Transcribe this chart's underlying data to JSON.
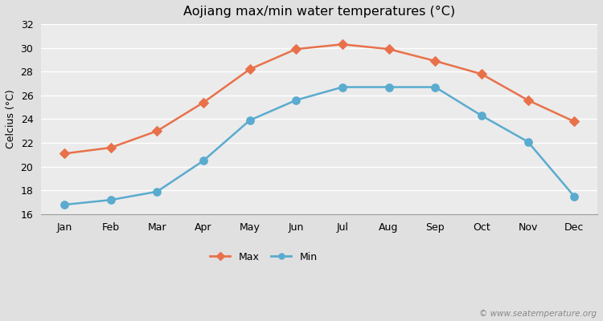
{
  "months": [
    "Jan",
    "Feb",
    "Mar",
    "Apr",
    "May",
    "Jun",
    "Jul",
    "Aug",
    "Sep",
    "Oct",
    "Nov",
    "Dec"
  ],
  "max_temps": [
    21.1,
    21.6,
    23.0,
    25.4,
    28.2,
    29.9,
    30.3,
    29.9,
    28.9,
    27.8,
    25.6,
    23.8
  ],
  "min_temps": [
    16.8,
    17.2,
    17.9,
    20.5,
    23.9,
    25.6,
    26.7,
    26.7,
    26.7,
    24.3,
    22.1,
    17.5
  ],
  "max_color": "#e8714a",
  "min_color": "#5aabcf",
  "title": "Aojiang max/min water temperatures (°C)",
  "ylabel": "Celcius (°C)",
  "ylim": [
    16,
    32
  ],
  "yticks": [
    16,
    18,
    20,
    22,
    24,
    26,
    28,
    30,
    32
  ],
  "outer_bg": "#e0e0e0",
  "plot_bg_color": "#ebebeb",
  "grid_color": "#ffffff",
  "watermark": "© www.seatemperature.org",
  "legend_max": "Max",
  "legend_min": "Min"
}
